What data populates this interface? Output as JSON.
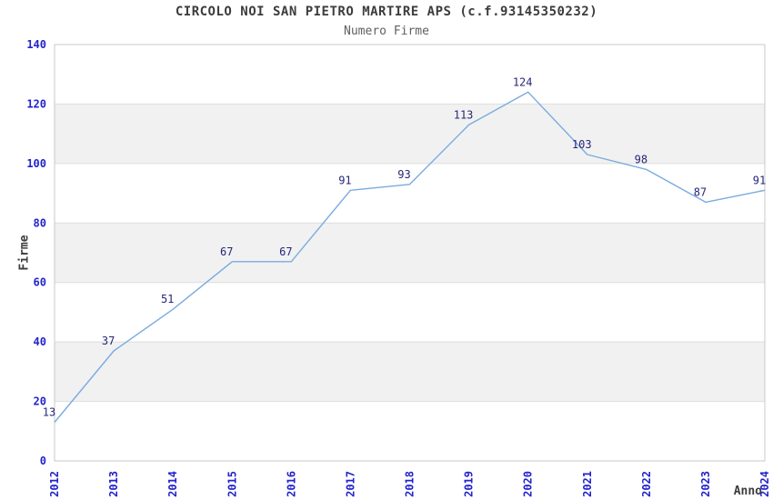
{
  "chart_data": {
    "type": "line",
    "title": "CIRCOLO NOI SAN PIETRO MARTIRE APS (c.f.93145350232)",
    "subtitle": "Numero Firme",
    "xlabel": "Anno",
    "ylabel": "Firme",
    "categories": [
      "2012",
      "2013",
      "2014",
      "2015",
      "2016",
      "2017",
      "2018",
      "2019",
      "2020",
      "2021",
      "2022",
      "2023",
      "2024"
    ],
    "values": [
      13,
      37,
      51,
      67,
      67,
      91,
      93,
      113,
      124,
      103,
      98,
      87,
      91
    ],
    "ylim": [
      0,
      140
    ],
    "yticks": [
      0,
      20,
      40,
      60,
      80,
      100,
      120,
      140
    ],
    "legend_position": "none",
    "grid": "alternating horizontal bands every 20 units",
    "data_labels_visible": true,
    "colors": {
      "line": "#7aabe0",
      "value_label": "#26267a",
      "tick_label": "#2323cc",
      "band_fill": "#f1f1f1",
      "grid_line": "#dedede",
      "plot_border": "#c8c8c8",
      "title_text": "#3c3c3c",
      "subtitle_text": "#606060",
      "axis_title_text": "#3c3c3c",
      "background": "#ffffff"
    }
  }
}
